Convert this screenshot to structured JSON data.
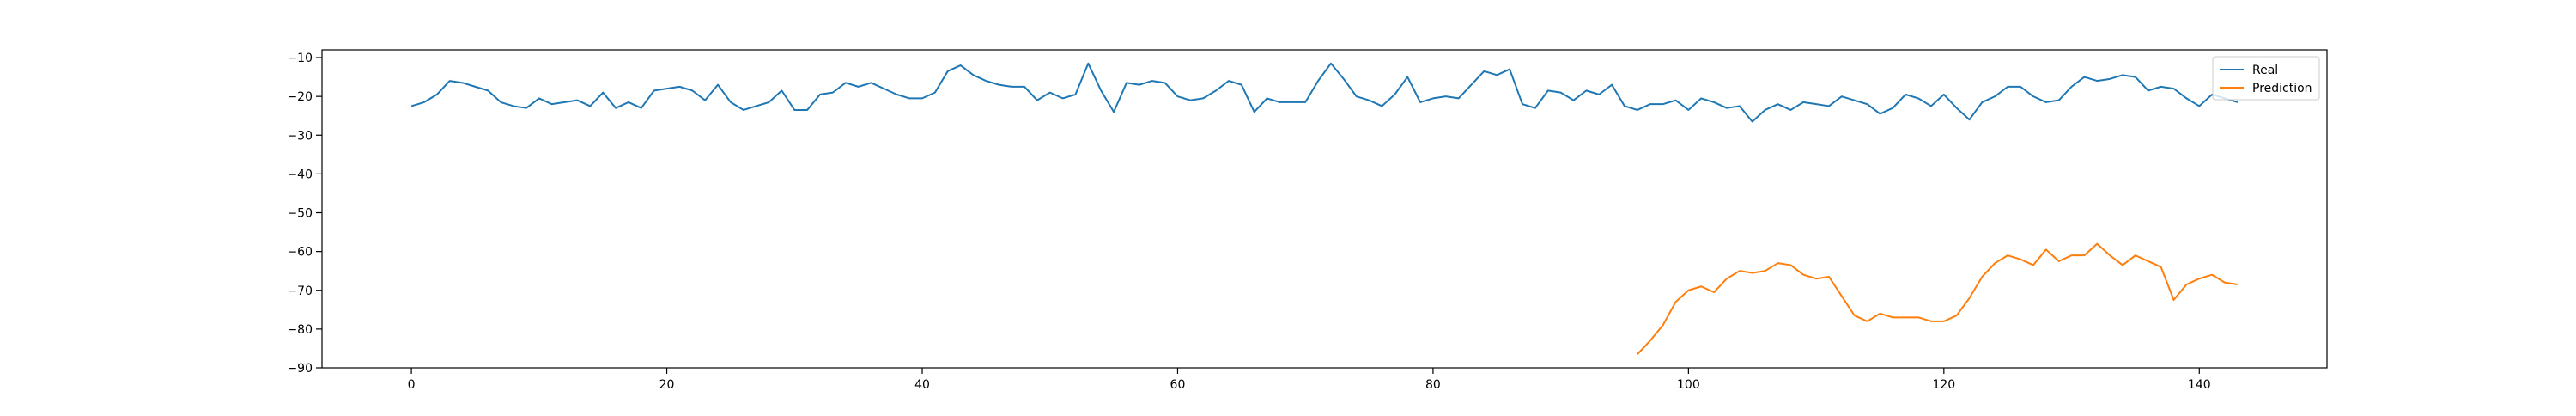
{
  "chart_data": {
    "type": "line",
    "title": "",
    "xlabel": "",
    "ylabel": "",
    "xlim": [
      -7,
      150
    ],
    "ylim": [
      -90,
      -8
    ],
    "xticks": [
      0,
      20,
      40,
      60,
      80,
      100,
      120,
      140
    ],
    "yticks": [
      -90,
      -80,
      -70,
      -60,
      -50,
      -40,
      -30,
      -20,
      -10
    ],
    "grid": false,
    "legend_position": "top-right",
    "colors": {
      "Real": "#1f77b4",
      "Prediction": "#ff7f0e"
    },
    "series": [
      {
        "name": "Real",
        "x": [
          0,
          1,
          2,
          3,
          4,
          5,
          6,
          7,
          8,
          9,
          10,
          11,
          12,
          13,
          14,
          15,
          16,
          17,
          18,
          19,
          20,
          21,
          22,
          23,
          24,
          25,
          26,
          27,
          28,
          29,
          30,
          31,
          32,
          33,
          34,
          35,
          36,
          37,
          38,
          39,
          40,
          41,
          42,
          43,
          44,
          45,
          46,
          47,
          48,
          49,
          50,
          51,
          52,
          53,
          54,
          55,
          56,
          57,
          58,
          59,
          60,
          61,
          62,
          63,
          64,
          65,
          66,
          67,
          68,
          69,
          70,
          71,
          72,
          73,
          74,
          75,
          76,
          77,
          78,
          79,
          80,
          81,
          82,
          83,
          84,
          85,
          86,
          87,
          88,
          89,
          90,
          91,
          92,
          93,
          94,
          95,
          96,
          97,
          98,
          99,
          100,
          101,
          102,
          103,
          104,
          105,
          106,
          107,
          108,
          109,
          110,
          111,
          112,
          113,
          114,
          115,
          116,
          117,
          118,
          119,
          120,
          121,
          122,
          123,
          124,
          125,
          126,
          127,
          128,
          129,
          130,
          131,
          132,
          133,
          134,
          135,
          136,
          137,
          138,
          139,
          140,
          141,
          142,
          143
        ],
        "values": [
          -22.5,
          -21.5,
          -19.5,
          -16,
          -16.5,
          -17.5,
          -18.5,
          -21.5,
          -22.5,
          -23,
          -20.5,
          -22,
          -21.5,
          -21,
          -22.5,
          -19,
          -23,
          -21.5,
          -23,
          -18.5,
          -18,
          -17.5,
          -18.5,
          -21,
          -17,
          -21.5,
          -23.5,
          -22.5,
          -21.5,
          -18.5,
          -23.5,
          -23.5,
          -19.5,
          -19,
          -16.5,
          -17.5,
          -16.5,
          -18,
          -19.5,
          -20.5,
          -20.5,
          -19,
          -13.5,
          -12,
          -14.5,
          -16,
          -17,
          -17.5,
          -17.5,
          -21,
          -19,
          -20.5,
          -19.5,
          -11.5,
          -18.5,
          -24,
          -16.5,
          -17,
          -16,
          -16.5,
          -20,
          -21,
          -20.5,
          -18.5,
          -16,
          -17,
          -24,
          -20.5,
          -21.5,
          -21.5,
          -21.5,
          -16,
          -11.5,
          -15.5,
          -20,
          -21,
          -22.5,
          -19.5,
          -15,
          -21.5,
          -20.5,
          -20,
          -20.5,
          -17,
          -13.5,
          -14.5,
          -13,
          -22,
          -23,
          -18.5,
          -19,
          -21,
          -18.5,
          -19.5,
          -17,
          -22.5,
          -23.5,
          -22,
          -22,
          -21,
          -23.5,
          -20.5,
          -21.5,
          -23,
          -22.5,
          -26.5,
          -23.5,
          -22,
          -23.5,
          -21.5,
          -22,
          -22.5,
          -20,
          -21,
          -22,
          -24.5,
          -23,
          -19.5,
          -20.5,
          -22.5,
          -19.5,
          -23,
          -26,
          -21.5,
          -20,
          -17.5,
          -17.5,
          -20,
          -21.5,
          -21,
          -17.5,
          -15,
          -16,
          -15.5,
          -14.5,
          -15,
          -18.5,
          -17.5,
          -18,
          -20.5,
          -22.5,
          -19.5,
          -20.5,
          -21.5
        ]
      },
      {
        "name": "Prediction",
        "x": [
          96,
          97,
          98,
          99,
          100,
          101,
          102,
          103,
          104,
          105,
          106,
          107,
          108,
          109,
          110,
          111,
          112,
          113,
          114,
          115,
          116,
          117,
          118,
          119,
          120,
          121,
          122,
          123,
          124,
          125,
          126,
          127,
          128,
          129,
          130,
          131,
          132,
          133,
          134,
          135,
          136,
          137,
          138,
          139,
          140,
          141,
          142,
          143
        ],
        "values": [
          -86.5,
          -83,
          -79,
          -73,
          -70,
          -69,
          -70.5,
          -67,
          -65,
          -65.5,
          -65,
          -63,
          -63.5,
          -66,
          -67,
          -66.5,
          -71.5,
          -76.5,
          -78,
          -76,
          -77,
          -77,
          -77,
          -78,
          -78,
          -76.5,
          -72,
          -66.5,
          -63,
          -61,
          -62,
          -63.5,
          -59.5,
          -62.5,
          -61,
          -61,
          -58,
          -61,
          -63.5,
          -61,
          -62.5,
          -64,
          -72.5,
          -68.5,
          -67,
          -66,
          -68,
          -68.5
        ]
      }
    ]
  }
}
